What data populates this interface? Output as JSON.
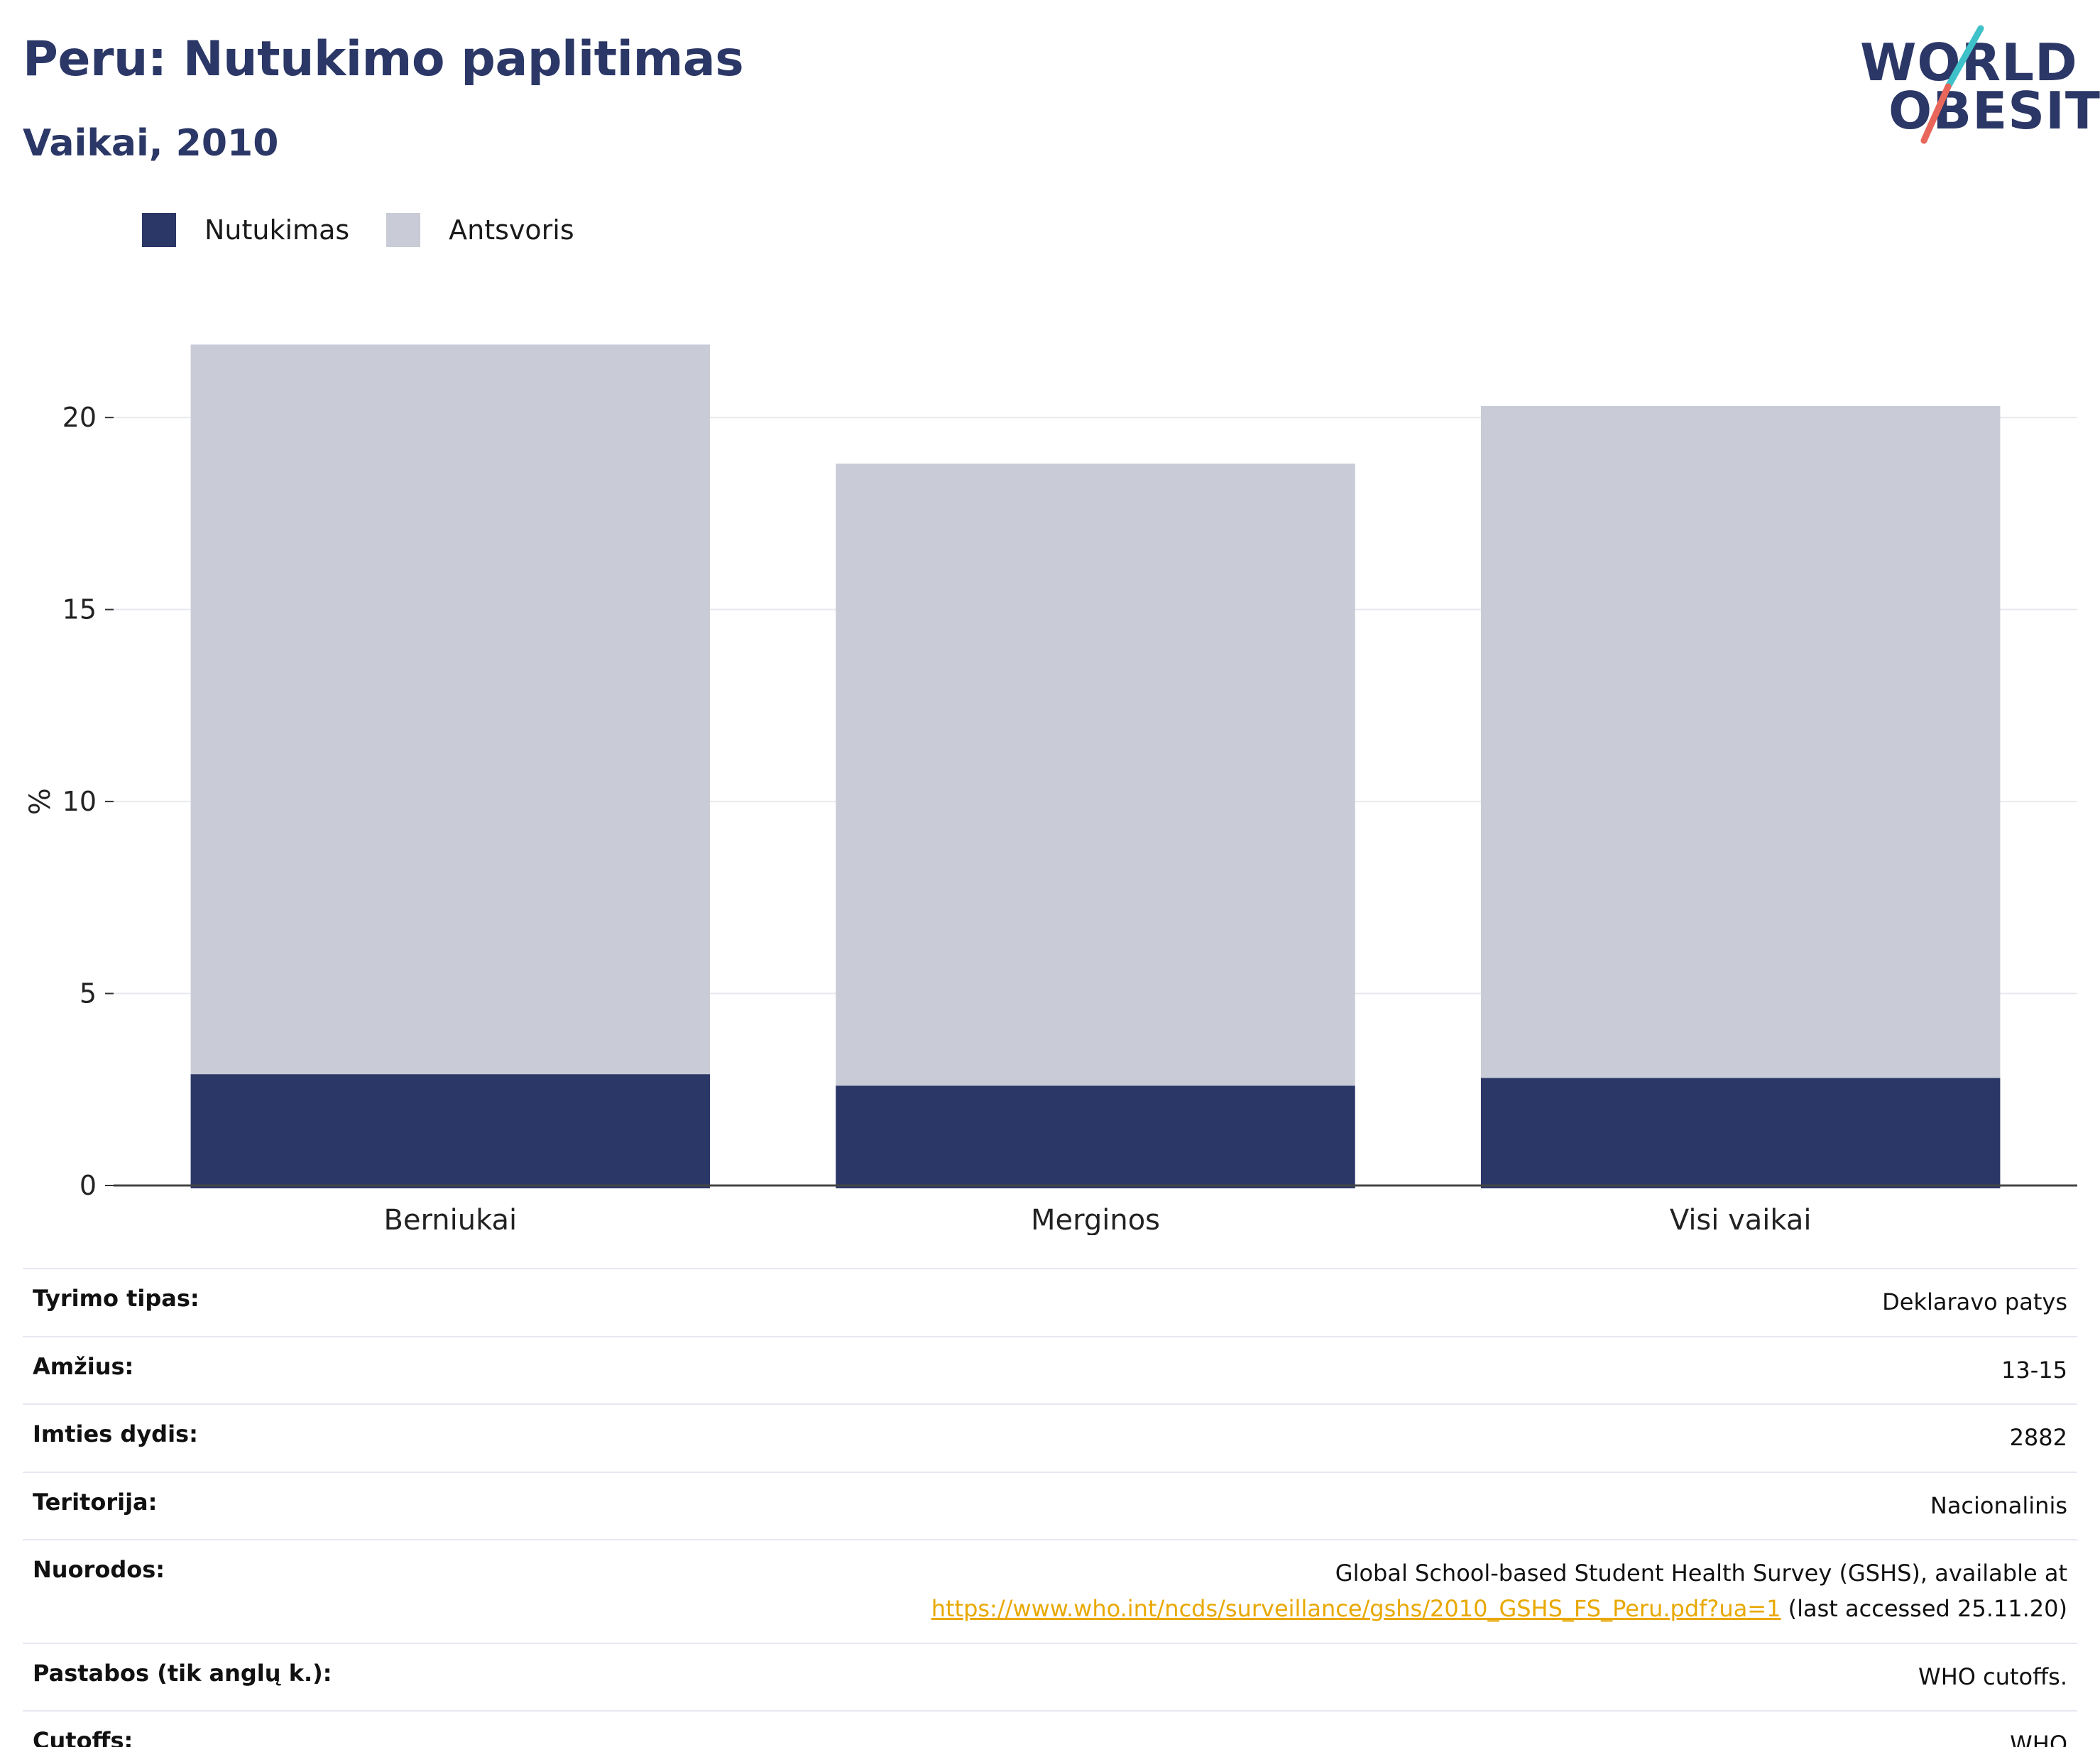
{
  "header": {
    "title": "Peru: Nutukimo paplitimas",
    "subtitle": "Vaikai, 2010"
  },
  "logo": {
    "line1": "WORLD",
    "line2": "OBESITY",
    "accent_colors": [
      "#3fc1c9",
      "#e8665a"
    ]
  },
  "legend": [
    {
      "label": "Nutukimas",
      "color": "#2b3766"
    },
    {
      "label": "Antsvoris",
      "color": "#c9cbd7"
    }
  ],
  "chart_data": {
    "type": "bar",
    "stacked": true,
    "categories": [
      "Berniukai",
      "Merginos",
      "Visi vaikai"
    ],
    "series": [
      {
        "name": "Nutukimas",
        "color": "#2b3766",
        "values": [
          2.9,
          2.6,
          2.8
        ]
      },
      {
        "name": "Antsvoris",
        "color": "#c9cbd7",
        "values": [
          19.0,
          16.2,
          17.5
        ]
      }
    ],
    "ylabel": "%",
    "ylim": [
      0,
      22
    ],
    "yticks": [
      0,
      5,
      10,
      15,
      20
    ],
    "grid": true,
    "legend_position": "top-left"
  },
  "info": {
    "survey_type": {
      "label": "Tyrimo tipas:",
      "value": "Deklaravo patys"
    },
    "age": {
      "label": "Amžius:",
      "value": "13-15"
    },
    "sample_size": {
      "label": "Imties dydis:",
      "value": "2882"
    },
    "area": {
      "label": "Teritorija:",
      "value": "Nacionalinis"
    },
    "references": {
      "label": "Nuorodos:",
      "text_before": "Global School-based Student Health Survey (GSHS), available at",
      "link": "https://www.who.int/ncds/surveillance/gshs/2010_GSHS_FS_Peru.pdf?ua=1",
      "text_after": " (last accessed 25.11.20)"
    },
    "notes": {
      "label": "Pastabos (tik anglų k.):",
      "value": "WHO cutoffs."
    },
    "cutoffs": {
      "label": "Cutoffs:",
      "value": "WHO"
    }
  }
}
